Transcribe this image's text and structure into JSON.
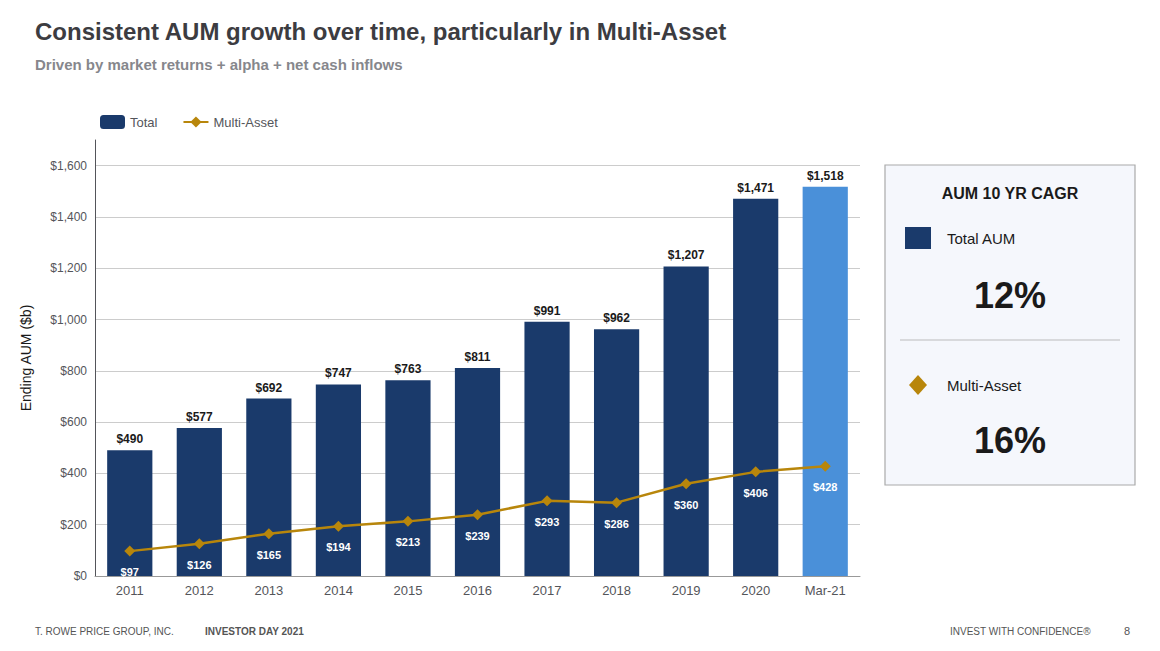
{
  "chart_data": {
    "type": "bar",
    "title": "Consistent AUM growth over time, particularly in Multi-Asset",
    "subtitle": "Driven by market returns + alpha + net cash inflows",
    "ylabel": "Ending AUM ($b)",
    "categories": [
      "2011",
      "2012",
      "2013",
      "2014",
      "2015",
      "2016",
      "2017",
      "2018",
      "2019",
      "2020",
      "Mar-21"
    ],
    "series": [
      {
        "name": "Total",
        "type": "bar",
        "color": "#1a3a6b",
        "colors": [
          "#1a3a6b",
          "#1a3a6b",
          "#1a3a6b",
          "#1a3a6b",
          "#1a3a6b",
          "#1a3a6b",
          "#1a3a6b",
          "#1a3a6b",
          "#1a3a6b",
          "#1a3a6b",
          "#4a90d9"
        ],
        "values": [
          490,
          577,
          692,
          747,
          763,
          811,
          991,
          962,
          1207,
          1471,
          1518
        ],
        "value_labels": [
          "$490",
          "$577",
          "$692",
          "$747",
          "$763",
          "$811",
          "$991",
          "$962",
          "$1,207",
          "$1,471",
          "$1,518"
        ]
      },
      {
        "name": "Multi-Asset",
        "type": "line",
        "color": "#b8860b",
        "marker": "diamond",
        "values": [
          97,
          126,
          165,
          194,
          213,
          239,
          293,
          286,
          360,
          406,
          428
        ],
        "value_labels": [
          "$97",
          "$126",
          "$165",
          "$194",
          "$213",
          "$239",
          "$293",
          "$286",
          "$360",
          "$406",
          "$428"
        ]
      }
    ],
    "ylim": [
      0,
      1700
    ],
    "yticks": [
      {
        "value": 0,
        "label": "$0"
      },
      {
        "value": 200,
        "label": "$200"
      },
      {
        "value": 400,
        "label": "$400"
      },
      {
        "value": 600,
        "label": "$600"
      },
      {
        "value": 800,
        "label": "$800"
      },
      {
        "value": 1000,
        "label": "$1,000"
      },
      {
        "value": 1200,
        "label": "$1,200"
      },
      {
        "value": 1400,
        "label": "$1,400"
      },
      {
        "value": 1600,
        "label": "$1,600"
      }
    ],
    "grid": true,
    "legend": "upper left",
    "data_labels": true,
    "annotations": {
      "box_title": "AUM 10 YR CAGR",
      "box_rows": [
        {
          "label": "Total AUM",
          "value": "12%"
        },
        {
          "label": "Multi-Asset",
          "value": "16%"
        }
      ]
    },
    "footer": [
      "T. ROWE PRICE GROUP, INC.",
      "INVESTOR DAY 2021",
      "INVEST WITH CONFIDENCE®",
      "8"
    ]
  }
}
